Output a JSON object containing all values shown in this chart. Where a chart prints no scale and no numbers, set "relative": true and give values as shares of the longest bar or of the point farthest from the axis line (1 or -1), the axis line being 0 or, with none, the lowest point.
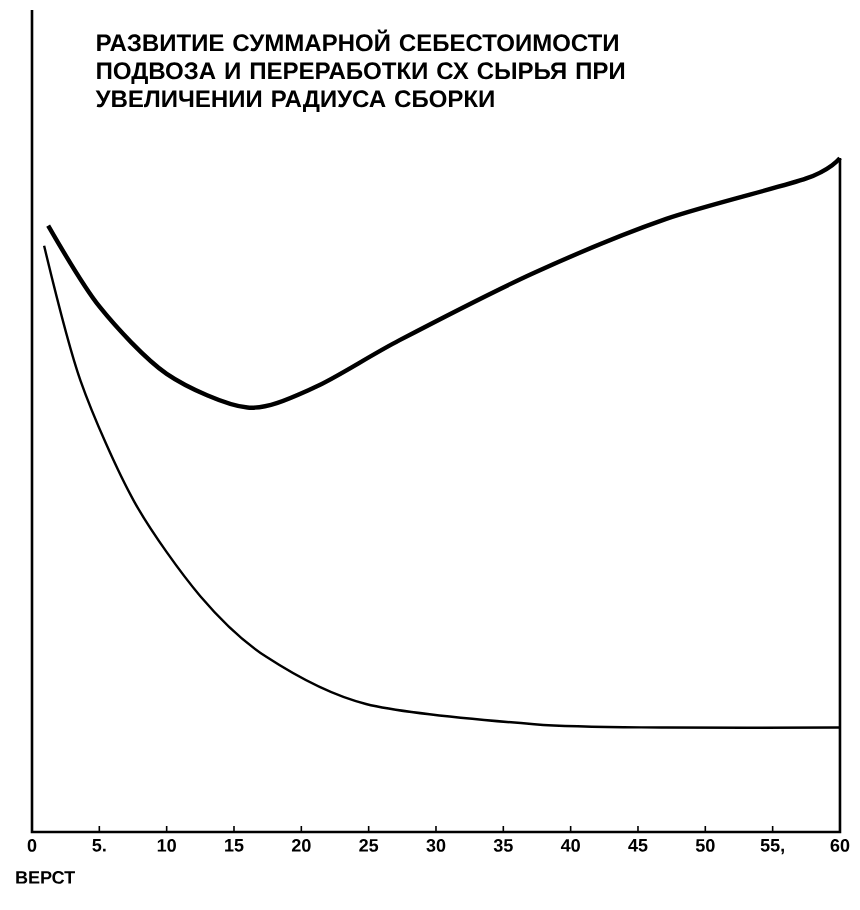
{
  "chart_data": {
    "type": "line",
    "title": "РАЗВИТИЕ СУММАРНОЙ СЕБЕСТОИМОСТИ ПОДВОЗА И ПЕРЕРАБОТКИ СХ СЫРЬЯ ПРИ УВЕЛИЧЕНИИ РАДИУСА СБОРКИ",
    "xlabel": "ВЕРСТ",
    "relative": true,
    "xlim": [
      0,
      60
    ],
    "xticks": [
      0,
      {
        "value": 5,
        "label": "5."
      },
      10,
      15,
      20,
      25,
      30,
      35,
      40,
      45,
      50,
      {
        "value": 55,
        "label": "55,"
      },
      60
    ],
    "series": [
      {
        "color": "#000000",
        "x": [
          1.2,
          5,
          10,
          16,
          21,
          27.3,
          37.3,
          47.1,
          57.5,
          60
        ],
        "values": [
          0.9,
          0.78,
          0.68,
          0.63,
          0.66,
          0.73,
          0.83,
          0.91,
          0.97,
          1.0
        ]
      },
      {
        "color": "#000000",
        "x": [
          0.9,
          3.6,
          7.6,
          12.5,
          17.4,
          24.8,
          37.3,
          47.1,
          60
        ],
        "values": [
          0.87,
          0.67,
          0.49,
          0.35,
          0.26,
          0.19,
          0.16,
          0.155,
          0.155
        ]
      }
    ],
    "grid": false,
    "line_style": "solid",
    "marker": "none"
  }
}
